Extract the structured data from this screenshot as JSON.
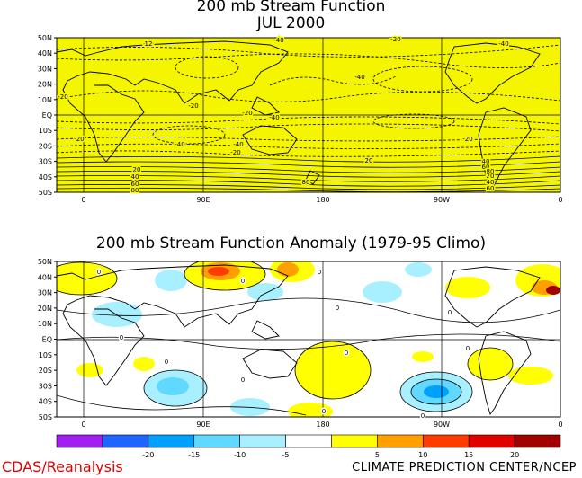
{
  "top_panel": {
    "title_line1": "200 mb Stream Function",
    "title_line2": "JUL 2000",
    "lat_labels": [
      "50N",
      "40N",
      "30N",
      "20N",
      "10N",
      "EQ",
      "10S",
      "20S",
      "30S",
      "40S",
      "50S"
    ],
    "lon_labels": [
      "0",
      "90E",
      "180",
      "90W",
      "0"
    ],
    "contour_labels": [
      {
        "text": "-20"
      },
      {
        "text": "-40"
      },
      {
        "text": "-20"
      },
      {
        "text": "-40"
      },
      {
        "text": "-40"
      },
      {
        "text": "-20"
      },
      {
        "text": "-20"
      },
      {
        "text": "-20"
      },
      {
        "text": "-40"
      },
      {
        "text": "-40"
      },
      {
        "text": "-20"
      },
      {
        "text": "-20"
      },
      {
        "text": "-20"
      },
      {
        "text": "-40"
      },
      {
        "text": "20"
      },
      {
        "text": "40"
      },
      {
        "text": "60"
      },
      {
        "text": "80"
      },
      {
        "text": "20"
      },
      {
        "text": "40"
      },
      {
        "text": "60"
      },
      {
        "text": "80"
      },
      {
        "text": "20"
      },
      {
        "text": "40"
      },
      {
        "text": "60"
      },
      {
        "text": "80"
      },
      {
        "text": "12"
      }
    ],
    "fill_color": "#f5f500"
  },
  "bottom_panel": {
    "title": "200 mb Stream Function Anomaly (1979-95 Climo)",
    "lat_labels": [
      "50N",
      "40N",
      "30N",
      "20N",
      "10N",
      "EQ",
      "10S",
      "20S",
      "30S",
      "40S",
      "50S"
    ],
    "lon_labels": [
      "0",
      "90E",
      "180",
      "90W",
      "0"
    ],
    "zero_labels": [
      "0",
      "0",
      "0",
      "0",
      "0",
      "0",
      "0",
      "0",
      "0",
      "0",
      "0",
      "0"
    ]
  },
  "colorbar": {
    "colors": [
      "#a020f0",
      "#1e64ff",
      "#00a0ff",
      "#60d8ff",
      "#a8f0ff",
      "#ffffff",
      "#ffff00",
      "#ffa000",
      "#ff3c00",
      "#e00000",
      "#a00000"
    ],
    "labels": [
      "-20",
      "-15",
      "-10",
      "-5",
      "5",
      "10",
      "15",
      "20"
    ]
  },
  "footer": {
    "left": "CDAS/Reanalysis",
    "right": "CLIMATE PREDICTION CENTER/NCEP"
  }
}
